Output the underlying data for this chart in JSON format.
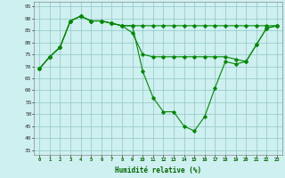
{
  "xlabel": "Humidité relative (%)",
  "background_color": "#cff0f0",
  "grid_color": "#99cccc",
  "line_color": "#008800",
  "x_ticks": [
    0,
    1,
    2,
    3,
    4,
    5,
    6,
    7,
    8,
    9,
    10,
    11,
    12,
    13,
    14,
    15,
    16,
    17,
    18,
    19,
    20,
    21,
    22,
    23
  ],
  "y_ticks": [
    35,
    40,
    45,
    50,
    55,
    60,
    65,
    70,
    75,
    80,
    85,
    90,
    95
  ],
  "ylim": [
    33,
    97
  ],
  "xlim": [
    -0.5,
    23.5
  ],
  "series1": [
    69,
    74,
    78,
    89,
    91,
    89,
    89,
    88,
    87,
    87,
    87,
    87,
    87,
    87,
    87,
    87,
    87,
    87,
    87,
    87,
    87,
    87,
    87,
    87
  ],
  "series2": [
    69,
    74,
    78,
    89,
    91,
    89,
    89,
    88,
    87,
    87,
    68,
    57,
    51,
    51,
    45,
    43,
    49,
    61,
    72,
    71,
    72,
    79,
    86,
    87
  ],
  "series3": [
    69,
    74,
    78,
    89,
    91,
    89,
    89,
    88,
    87,
    84,
    75,
    74,
    74,
    74,
    74,
    74,
    74,
    74,
    74,
    73,
    72,
    79,
    86,
    87
  ]
}
